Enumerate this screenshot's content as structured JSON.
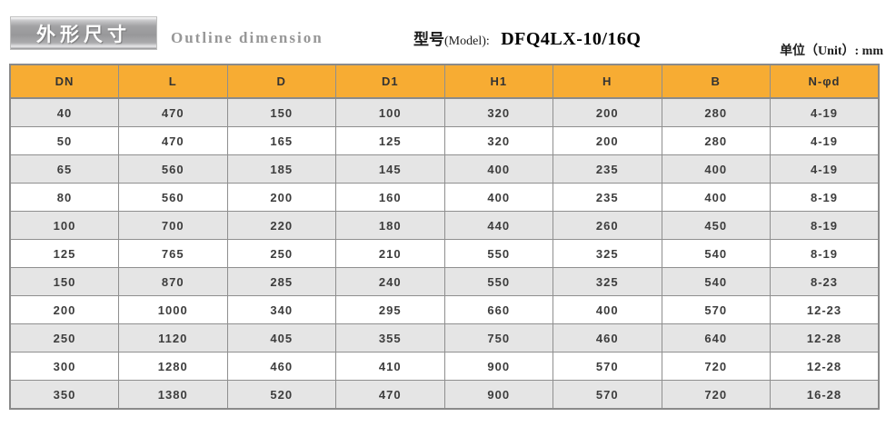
{
  "page": {
    "title_banner": "外形尺寸",
    "subtitle": "Outline dimension",
    "model_label_cn": "型号",
    "model_label_en": "(Model):",
    "model_value": "DFQ4LX-10/16Q",
    "unit_text": "单位（Unit）: mm"
  },
  "colors": {
    "table_header_bg": "#F7AC33",
    "row_alt_bg": "#E5E5E5",
    "row_bg": "#FFFFFF",
    "border": "#8F8F8F",
    "banner_gray": "#A2A2A4",
    "banner_text": "#FFFFFF",
    "subtitle_text": "#979797"
  },
  "table": {
    "columns": [
      "DN",
      "L",
      "D",
      "D1",
      "H1",
      "H",
      "B",
      "N-φd"
    ],
    "rows": [
      [
        "40",
        "470",
        "150",
        "100",
        "320",
        "200",
        "280",
        "4-19"
      ],
      [
        "50",
        "470",
        "165",
        "125",
        "320",
        "200",
        "280",
        "4-19"
      ],
      [
        "65",
        "560",
        "185",
        "145",
        "400",
        "235",
        "400",
        "4-19"
      ],
      [
        "80",
        "560",
        "200",
        "160",
        "400",
        "235",
        "400",
        "8-19"
      ],
      [
        "100",
        "700",
        "220",
        "180",
        "440",
        "260",
        "450",
        "8-19"
      ],
      [
        "125",
        "765",
        "250",
        "210",
        "550",
        "325",
        "540",
        "8-19"
      ],
      [
        "150",
        "870",
        "285",
        "240",
        "550",
        "325",
        "540",
        "8-23"
      ],
      [
        "200",
        "1000",
        "340",
        "295",
        "660",
        "400",
        "570",
        "12-23"
      ],
      [
        "250",
        "1120",
        "405",
        "355",
        "750",
        "460",
        "640",
        "12-28"
      ],
      [
        "300",
        "1280",
        "460",
        "410",
        "900",
        "570",
        "720",
        "12-28"
      ],
      [
        "350",
        "1380",
        "520",
        "470",
        "900",
        "570",
        "720",
        "16-28"
      ]
    ]
  }
}
